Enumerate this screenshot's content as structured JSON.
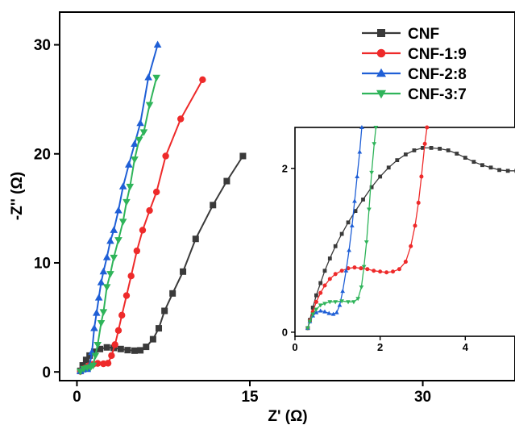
{
  "chart_data": [
    {
      "type": "line",
      "xlabel": "Z' (Ω)",
      "ylabel": "-Z'' (Ω)",
      "xlim": [
        -1.5,
        38
      ],
      "ylim": [
        -0.8,
        33
      ],
      "xticks": [
        0,
        15,
        30
      ],
      "yticks": [
        0,
        10,
        20,
        30
      ],
      "grid": false,
      "legend": "top-right",
      "colors": {
        "CNF": "#3a3a3a",
        "CNF-1:9": "#ee2a2a",
        "CNF-2:8": "#1f5fd6",
        "CNF-3:7": "#2fb45a"
      },
      "markers": {
        "CNF": "square",
        "CNF-1:9": "circle",
        "CNF-2:8": "triangle-up",
        "CNF-3:7": "triangle-down"
      },
      "series": [
        {
          "name": "CNF",
          "points": [
            [
              0.3,
              0.1
            ],
            [
              0.5,
              0.6
            ],
            [
              0.8,
              1.1
            ],
            [
              1.1,
              1.5
            ],
            [
              1.5,
              1.85
            ],
            [
              2.0,
              2.1
            ],
            [
              2.6,
              2.25
            ],
            [
              3.2,
              2.2
            ],
            [
              3.8,
              2.1
            ],
            [
              4.4,
              2.0
            ],
            [
              5.0,
              1.95
            ],
            [
              5.5,
              1.98
            ],
            [
              6.0,
              2.3
            ],
            [
              6.6,
              3.0
            ],
            [
              7.1,
              4.0
            ],
            [
              7.6,
              5.6
            ],
            [
              8.3,
              7.2
            ],
            [
              9.2,
              9.2
            ],
            [
              10.3,
              12.2
            ],
            [
              11.8,
              15.3
            ],
            [
              13.0,
              17.5
            ],
            [
              14.4,
              19.8
            ]
          ]
        },
        {
          "name": "CNF-1:9",
          "points": [
            [
              0.3,
              0.05
            ],
            [
              0.6,
              0.3
            ],
            [
              1.0,
              0.55
            ],
            [
              1.4,
              0.7
            ],
            [
              1.8,
              0.78
            ],
            [
              2.3,
              0.75
            ],
            [
              2.7,
              0.8
            ],
            [
              3.0,
              1.5
            ],
            [
              3.3,
              2.5
            ],
            [
              3.6,
              3.8
            ],
            [
              3.9,
              5.2
            ],
            [
              4.3,
              7.0
            ],
            [
              4.7,
              8.8
            ],
            [
              5.2,
              11.1
            ],
            [
              5.7,
              13.0
            ],
            [
              6.3,
              14.8
            ],
            [
              6.9,
              16.5
            ],
            [
              7.7,
              19.8
            ],
            [
              9.0,
              23.2
            ],
            [
              10.9,
              26.8
            ]
          ]
        },
        {
          "name": "CNF-2:8",
          "points": [
            [
              0.3,
              0.05
            ],
            [
              0.5,
              0.2
            ],
            [
              0.7,
              0.3
            ],
            [
              0.9,
              0.25
            ],
            [
              1.1,
              0.6
            ],
            [
              1.3,
              1.8
            ],
            [
              1.5,
              4.0
            ],
            [
              1.7,
              5.4
            ],
            [
              1.9,
              6.8
            ],
            [
              2.1,
              8.2
            ],
            [
              2.3,
              9.2
            ],
            [
              2.6,
              10.5
            ],
            [
              2.9,
              12.0
            ],
            [
              3.2,
              13.0
            ],
            [
              3.6,
              14.8
            ],
            [
              4.0,
              17.0
            ],
            [
              4.5,
              19.0
            ],
            [
              5.0,
              20.9
            ],
            [
              5.5,
              22.8
            ],
            [
              6.2,
              27.0
            ],
            [
              7.0,
              30.0
            ]
          ]
        },
        {
          "name": "CNF-3:7",
          "points": [
            [
              0.3,
              0.05
            ],
            [
              0.6,
              0.3
            ],
            [
              0.9,
              0.4
            ],
            [
              1.2,
              0.45
            ],
            [
              1.4,
              0.6
            ],
            [
              1.6,
              1.5
            ],
            [
              1.8,
              2.5
            ],
            [
              2.1,
              4.5
            ],
            [
              2.3,
              5.5
            ],
            [
              2.6,
              7.8
            ],
            [
              2.9,
              9.0
            ],
            [
              3.2,
              10.5
            ],
            [
              3.6,
              12.1
            ],
            [
              4.0,
              13.8
            ],
            [
              4.3,
              15.6
            ],
            [
              4.6,
              17.0
            ],
            [
              5.0,
              19.5
            ],
            [
              5.4,
              21.3
            ],
            [
              5.8,
              22.0
            ],
            [
              6.3,
              24.5
            ],
            [
              6.9,
              27.0
            ]
          ]
        }
      ]
    },
    {
      "type": "line",
      "inset": true,
      "xlim": [
        0,
        5.3
      ],
      "ylim": [
        -0.05,
        2.5
      ],
      "xticks": [
        0,
        2,
        4
      ],
      "yticks": [
        0,
        2
      ],
      "series": [
        {
          "name": "CNF",
          "points": [
            [
              0.3,
              0.05
            ],
            [
              0.35,
              0.15
            ],
            [
              0.42,
              0.3
            ],
            [
              0.5,
              0.45
            ],
            [
              0.6,
              0.6
            ],
            [
              0.7,
              0.75
            ],
            [
              0.82,
              0.9
            ],
            [
              0.95,
              1.05
            ],
            [
              1.1,
              1.2
            ],
            [
              1.25,
              1.34
            ],
            [
              1.42,
              1.48
            ],
            [
              1.6,
              1.62
            ],
            [
              1.8,
              1.77
            ],
            [
              2.0,
              1.9
            ],
            [
              2.2,
              2.01
            ],
            [
              2.4,
              2.1
            ],
            [
              2.6,
              2.17
            ],
            [
              2.8,
              2.22
            ],
            [
              3.0,
              2.25
            ],
            [
              3.2,
              2.25
            ],
            [
              3.4,
              2.24
            ],
            [
              3.6,
              2.22
            ],
            [
              3.8,
              2.18
            ],
            [
              4.0,
              2.13
            ],
            [
              4.2,
              2.08
            ],
            [
              4.4,
              2.04
            ],
            [
              4.6,
              2.01
            ],
            [
              4.8,
              1.98
            ],
            [
              5.0,
              1.97
            ],
            [
              5.2,
              1.97
            ]
          ]
        },
        {
          "name": "CNF-1:9",
          "points": [
            [
              0.3,
              0.05
            ],
            [
              0.35,
              0.14
            ],
            [
              0.42,
              0.25
            ],
            [
              0.5,
              0.37
            ],
            [
              0.6,
              0.48
            ],
            [
              0.7,
              0.57
            ],
            [
              0.82,
              0.65
            ],
            [
              0.95,
              0.71
            ],
            [
              1.1,
              0.75
            ],
            [
              1.25,
              0.78
            ],
            [
              1.4,
              0.79
            ],
            [
              1.55,
              0.78
            ],
            [
              1.7,
              0.77
            ],
            [
              1.85,
              0.75
            ],
            [
              2.0,
              0.74
            ],
            [
              2.15,
              0.73
            ],
            [
              2.3,
              0.74
            ],
            [
              2.45,
              0.77
            ],
            [
              2.6,
              0.86
            ],
            [
              2.72,
              1.05
            ],
            [
              2.82,
              1.3
            ],
            [
              2.9,
              1.58
            ],
            [
              2.97,
              1.9
            ],
            [
              3.05,
              2.3
            ],
            [
              3.1,
              2.5
            ]
          ]
        },
        {
          "name": "CNF-2:8",
          "points": [
            [
              0.3,
              0.05
            ],
            [
              0.35,
              0.13
            ],
            [
              0.42,
              0.2
            ],
            [
              0.5,
              0.24
            ],
            [
              0.6,
              0.26
            ],
            [
              0.7,
              0.25
            ],
            [
              0.8,
              0.23
            ],
            [
              0.9,
              0.22
            ],
            [
              0.98,
              0.24
            ],
            [
              1.05,
              0.33
            ],
            [
              1.12,
              0.5
            ],
            [
              1.2,
              0.75
            ],
            [
              1.27,
              1.0
            ],
            [
              1.34,
              1.3
            ],
            [
              1.4,
              1.6
            ],
            [
              1.46,
              1.9
            ],
            [
              1.52,
              2.2
            ],
            [
              1.57,
              2.5
            ]
          ]
        },
        {
          "name": "CNF-3:7",
          "points": [
            [
              0.3,
              0.05
            ],
            [
              0.35,
              0.13
            ],
            [
              0.42,
              0.22
            ],
            [
              0.5,
              0.28
            ],
            [
              0.6,
              0.33
            ],
            [
              0.7,
              0.35
            ],
            [
              0.82,
              0.37
            ],
            [
              0.95,
              0.37
            ],
            [
              1.1,
              0.38
            ],
            [
              1.25,
              0.37
            ],
            [
              1.38,
              0.37
            ],
            [
              1.48,
              0.41
            ],
            [
              1.56,
              0.55
            ],
            [
              1.62,
              0.8
            ],
            [
              1.68,
              1.1
            ],
            [
              1.74,
              1.5
            ],
            [
              1.8,
              1.95
            ],
            [
              1.86,
              2.3
            ],
            [
              1.9,
              2.5
            ]
          ]
        }
      ]
    }
  ]
}
